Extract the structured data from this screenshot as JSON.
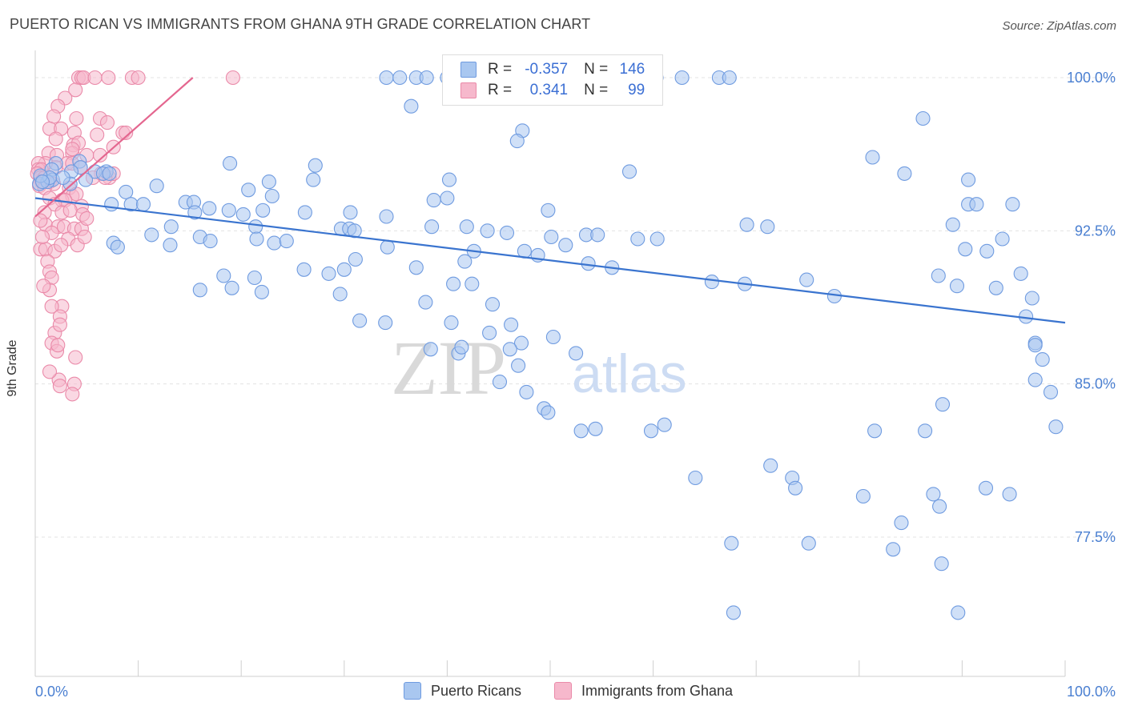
{
  "title": "PUERTO RICAN VS IMMIGRANTS FROM GHANA 9TH GRADE CORRELATION CHART",
  "source": "Source: ZipAtlas.com",
  "watermark": {
    "zip": "ZIP",
    "atlas": "atlas"
  },
  "legend": {
    "row1": {
      "r_label": "R =",
      "r_value": "-0.357",
      "n_label": "N =",
      "n_value": "146"
    },
    "row2": {
      "r_label": "R =",
      "r_value": "0.341",
      "n_label": "N =",
      "n_value": "99"
    }
  },
  "colors": {
    "blue_fill": "#a9c7f0",
    "blue_stroke": "#6f9be0",
    "blue_line": "#3a74cf",
    "pink_fill": "#f6b8cc",
    "pink_stroke": "#ea8aa9",
    "pink_line": "#e4668f",
    "tick_label": "#4a7fd1",
    "grid": "#e3e3e3"
  },
  "chart_data": {
    "type": "scatter",
    "title": "PUERTO RICAN VS IMMIGRANTS FROM GHANA 9TH GRADE CORRELATION CHART",
    "xlabel": "",
    "ylabel": "9th Grade",
    "xlim": [
      0,
      100
    ],
    "ylim": [
      70,
      100.5
    ],
    "x_tick_labels": [
      "0.0%",
      "100.0%"
    ],
    "y_ticks": [
      77.5,
      85.0,
      92.5,
      100.0
    ],
    "y_tick_labels": [
      "77.5%",
      "85.0%",
      "92.5%",
      "100.0%"
    ],
    "grid": true,
    "legend_placement": "bottom",
    "series": [
      {
        "name": "Puerto Ricans",
        "color": "#a9c7f0",
        "trend": {
          "x": [
            0,
            100
          ],
          "y": [
            94.1,
            88.0
          ]
        },
        "points": [
          [
            34.1,
            100
          ],
          [
            35.4,
            100
          ],
          [
            37.0,
            100
          ],
          [
            38.0,
            100
          ],
          [
            40.0,
            100
          ],
          [
            41.2,
            100
          ],
          [
            42.2,
            100
          ],
          [
            43.6,
            100
          ],
          [
            45.0,
            100
          ],
          [
            46.8,
            100
          ],
          [
            48.7,
            100
          ],
          [
            53.6,
            99
          ],
          [
            56.6,
            100
          ],
          [
            58.0,
            100
          ],
          [
            60.3,
            100
          ],
          [
            62.8,
            100
          ],
          [
            66.4,
            100
          ],
          [
            67.4,
            100
          ],
          [
            36.5,
            98.6
          ],
          [
            86.2,
            98
          ],
          [
            47.3,
            97.4
          ],
          [
            46.8,
            96.9
          ],
          [
            81.3,
            96.1
          ],
          [
            18.9,
            95.8
          ],
          [
            27.2,
            95.7
          ],
          [
            4.3,
            95.9
          ],
          [
            2.0,
            95.8
          ],
          [
            4.4,
            95.6
          ],
          [
            6.9,
            95.4
          ],
          [
            5.8,
            95.4
          ],
          [
            6.6,
            95.3
          ],
          [
            7.2,
            95.3
          ],
          [
            1.6,
            95.5
          ],
          [
            3.5,
            95.4
          ],
          [
            1.7,
            95.0
          ],
          [
            4.9,
            95.0
          ],
          [
            0.4,
            94.8
          ],
          [
            1.2,
            94.9
          ],
          [
            1.4,
            95.1
          ],
          [
            3.4,
            94.8
          ],
          [
            0.5,
            95.2
          ],
          [
            0.7,
            94.9
          ],
          [
            2.7,
            95.1
          ],
          [
            57.7,
            95.4
          ],
          [
            84.4,
            95.3
          ],
          [
            90.6,
            95.0
          ],
          [
            27.0,
            95.0
          ],
          [
            40.2,
            95.0
          ],
          [
            22.7,
            94.9
          ],
          [
            11.8,
            94.7
          ],
          [
            20.7,
            94.5
          ],
          [
            8.8,
            94.4
          ],
          [
            23.0,
            94.2
          ],
          [
            14.6,
            93.9
          ],
          [
            38.7,
            94.0
          ],
          [
            40.0,
            94.1
          ],
          [
            7.4,
            93.8
          ],
          [
            9.3,
            93.8
          ],
          [
            10.5,
            93.8
          ],
          [
            15.4,
            93.9
          ],
          [
            18.8,
            93.5
          ],
          [
            22.1,
            93.5
          ],
          [
            16.9,
            93.6
          ],
          [
            15.5,
            93.4
          ],
          [
            20.2,
            93.3
          ],
          [
            30.6,
            93.4
          ],
          [
            34.1,
            93.2
          ],
          [
            26.2,
            93.4
          ],
          [
            49.8,
            93.5
          ],
          [
            90.6,
            93.8
          ],
          [
            91.4,
            93.8
          ],
          [
            94.9,
            93.8
          ],
          [
            13.2,
            92.7
          ],
          [
            21.4,
            92.7
          ],
          [
            29.7,
            92.6
          ],
          [
            30.5,
            92.6
          ],
          [
            31.0,
            92.5
          ],
          [
            38.5,
            92.7
          ],
          [
            41.9,
            92.7
          ],
          [
            43.9,
            92.5
          ],
          [
            45.8,
            92.4
          ],
          [
            50.1,
            92.2
          ],
          [
            53.5,
            92.3
          ],
          [
            54.6,
            92.3
          ],
          [
            69.1,
            92.8
          ],
          [
            71.1,
            92.7
          ],
          [
            89.1,
            92.8
          ],
          [
            11.3,
            92.3
          ],
          [
            7.6,
            91.9
          ],
          [
            8.0,
            91.7
          ],
          [
            13.1,
            91.8
          ],
          [
            16.0,
            92.2
          ],
          [
            17.0,
            92.0
          ],
          [
            21.5,
            92.1
          ],
          [
            23.2,
            91.9
          ],
          [
            24.4,
            92.0
          ],
          [
            34.2,
            91.7
          ],
          [
            42.6,
            91.5
          ],
          [
            47.5,
            91.5
          ],
          [
            48.8,
            91.3
          ],
          [
            51.5,
            91.8
          ],
          [
            58.5,
            92.1
          ],
          [
            60.4,
            92.1
          ],
          [
            93.9,
            92.1
          ],
          [
            90.3,
            91.6
          ],
          [
            92.4,
            91.5
          ],
          [
            18.3,
            90.3
          ],
          [
            21.3,
            90.2
          ],
          [
            26.1,
            90.6
          ],
          [
            28.5,
            90.4
          ],
          [
            30.0,
            90.6
          ],
          [
            31.1,
            91.1
          ],
          [
            37.0,
            90.7
          ],
          [
            41.7,
            91.0
          ],
          [
            53.7,
            90.9
          ],
          [
            56.0,
            90.7
          ],
          [
            87.7,
            90.3
          ],
          [
            95.7,
            90.4
          ],
          [
            89.5,
            89.8
          ],
          [
            93.3,
            89.7
          ],
          [
            65.7,
            90.0
          ],
          [
            68.9,
            89.9
          ],
          [
            74.9,
            90.1
          ],
          [
            77.6,
            89.3
          ],
          [
            16.0,
            89.6
          ],
          [
            19.1,
            89.7
          ],
          [
            22.0,
            89.5
          ],
          [
            29.6,
            89.4
          ],
          [
            40.6,
            89.9
          ],
          [
            42.4,
            89.9
          ],
          [
            44.4,
            88.9
          ],
          [
            46.2,
            87.9
          ],
          [
            47.2,
            87.0
          ],
          [
            50.3,
            87.3
          ],
          [
            52.5,
            86.5
          ],
          [
            37.9,
            89.0
          ],
          [
            38.4,
            86.7
          ],
          [
            41.1,
            86.5
          ],
          [
            31.5,
            88.1
          ],
          [
            34.0,
            88.0
          ],
          [
            40.4,
            88.0
          ],
          [
            41.4,
            86.8
          ],
          [
            44.1,
            87.5
          ],
          [
            46.1,
            86.7
          ],
          [
            46.9,
            85.9
          ],
          [
            45.1,
            85.1
          ],
          [
            47.7,
            84.6
          ],
          [
            49.4,
            83.8
          ],
          [
            49.8,
            83.6
          ],
          [
            53.0,
            82.7
          ],
          [
            54.4,
            82.8
          ],
          [
            59.8,
            82.7
          ],
          [
            61.1,
            83.0
          ],
          [
            81.5,
            82.7
          ],
          [
            86.4,
            82.7
          ],
          [
            88.1,
            84.0
          ],
          [
            97.1,
            87.0
          ],
          [
            96.2,
            88.3
          ],
          [
            96.8,
            89.2
          ],
          [
            97.1,
            86.9
          ],
          [
            97.1,
            85.2
          ],
          [
            97.8,
            86.2
          ],
          [
            98.6,
            84.6
          ],
          [
            99.1,
            82.9
          ],
          [
            64.1,
            80.4
          ],
          [
            71.4,
            81.0
          ],
          [
            73.5,
            80.4
          ],
          [
            73.8,
            79.9
          ],
          [
            80.4,
            79.5
          ],
          [
            84.1,
            78.2
          ],
          [
            87.2,
            79.6
          ],
          [
            87.8,
            79.0
          ],
          [
            94.6,
            79.6
          ],
          [
            92.3,
            79.9
          ],
          [
            75.1,
            77.2
          ],
          [
            83.3,
            76.9
          ],
          [
            88.0,
            76.2
          ],
          [
            67.6,
            77.2
          ],
          [
            67.8,
            73.8
          ],
          [
            89.6,
            73.8
          ]
        ]
      },
      {
        "name": "Immigrants from Ghana",
        "color": "#f6b8cc",
        "trend": {
          "x": [
            0,
            15.3
          ],
          "y": [
            93.2,
            100
          ]
        },
        "points": [
          [
            4.2,
            100
          ],
          [
            4.5,
            100
          ],
          [
            4.7,
            100
          ],
          [
            5.8,
            100
          ],
          [
            7.1,
            100
          ],
          [
            9.4,
            100
          ],
          [
            10.0,
            100
          ],
          [
            19.2,
            100
          ],
          [
            3.9,
            99.4
          ],
          [
            2.9,
            99.0
          ],
          [
            2.2,
            98.6
          ],
          [
            1.8,
            98.1
          ],
          [
            4.0,
            98.0
          ],
          [
            6.3,
            98.0
          ],
          [
            7.0,
            97.8
          ],
          [
            8.5,
            97.3
          ],
          [
            8.8,
            97.3
          ],
          [
            6.0,
            97.2
          ],
          [
            3.8,
            97.3
          ],
          [
            1.4,
            97.5
          ],
          [
            2.5,
            97.5
          ],
          [
            2.0,
            97.0
          ],
          [
            3.7,
            96.7
          ],
          [
            4.2,
            96.8
          ],
          [
            7.6,
            96.6
          ],
          [
            1.3,
            96.3
          ],
          [
            2.1,
            96.2
          ],
          [
            3.6,
            96.3
          ],
          [
            3.6,
            96.5
          ],
          [
            5.0,
            96.2
          ],
          [
            6.3,
            96.2
          ],
          [
            3.1,
            95.8
          ],
          [
            3.6,
            95.8
          ],
          [
            4.4,
            95.6
          ],
          [
            2.0,
            95.6
          ],
          [
            1.0,
            95.8
          ],
          [
            0.3,
            95.8
          ],
          [
            0.3,
            95.5
          ],
          [
            0.6,
            95.5
          ],
          [
            0.2,
            95.3
          ],
          [
            0.5,
            95.1
          ],
          [
            0.9,
            95.1
          ],
          [
            0.6,
            94.9
          ],
          [
            1.4,
            94.9
          ],
          [
            1.8,
            94.8
          ],
          [
            0.4,
            94.7
          ],
          [
            0.9,
            94.6
          ],
          [
            6.4,
            95.3
          ],
          [
            7.2,
            95.1
          ],
          [
            7.6,
            95.3
          ],
          [
            5.6,
            95.1
          ],
          [
            6.8,
            95.1
          ],
          [
            3.3,
            94.6
          ],
          [
            3.6,
            94.2
          ],
          [
            4.0,
            94.3
          ],
          [
            1.4,
            94.1
          ],
          [
            2.6,
            94.0
          ],
          [
            2.9,
            94.0
          ],
          [
            4.5,
            93.7
          ],
          [
            1.9,
            93.8
          ],
          [
            2.6,
            93.4
          ],
          [
            0.9,
            93.4
          ],
          [
            3.4,
            93.5
          ],
          [
            4.6,
            93.3
          ],
          [
            1.0,
            92.8
          ],
          [
            2.2,
            92.7
          ],
          [
            2.8,
            92.7
          ],
          [
            1.6,
            92.4
          ],
          [
            3.8,
            92.6
          ],
          [
            4.5,
            92.6
          ],
          [
            3.2,
            92.1
          ],
          [
            4.1,
            91.8
          ],
          [
            0.5,
            91.6
          ],
          [
            1.0,
            91.6
          ],
          [
            1.9,
            91.5
          ],
          [
            2.5,
            91.8
          ],
          [
            1.2,
            91.0
          ],
          [
            1.4,
            90.5
          ],
          [
            1.6,
            90.2
          ],
          [
            1.4,
            89.6
          ],
          [
            0.8,
            89.8
          ],
          [
            2.6,
            88.8
          ],
          [
            1.6,
            88.8
          ],
          [
            2.4,
            88.3
          ],
          [
            1.9,
            87.5
          ],
          [
            2.4,
            87.9
          ],
          [
            1.6,
            87.0
          ],
          [
            2.1,
            86.6
          ],
          [
            2.3,
            85.2
          ],
          [
            3.8,
            85.0
          ],
          [
            2.4,
            84.9
          ],
          [
            3.6,
            84.5
          ],
          [
            2.2,
            86.9
          ],
          [
            1.4,
            85.6
          ],
          [
            3.9,
            86.3
          ],
          [
            0.7,
            92.2
          ],
          [
            0.5,
            93.0
          ],
          [
            4.8,
            92.2
          ],
          [
            5.0,
            93.1
          ]
        ]
      }
    ]
  }
}
